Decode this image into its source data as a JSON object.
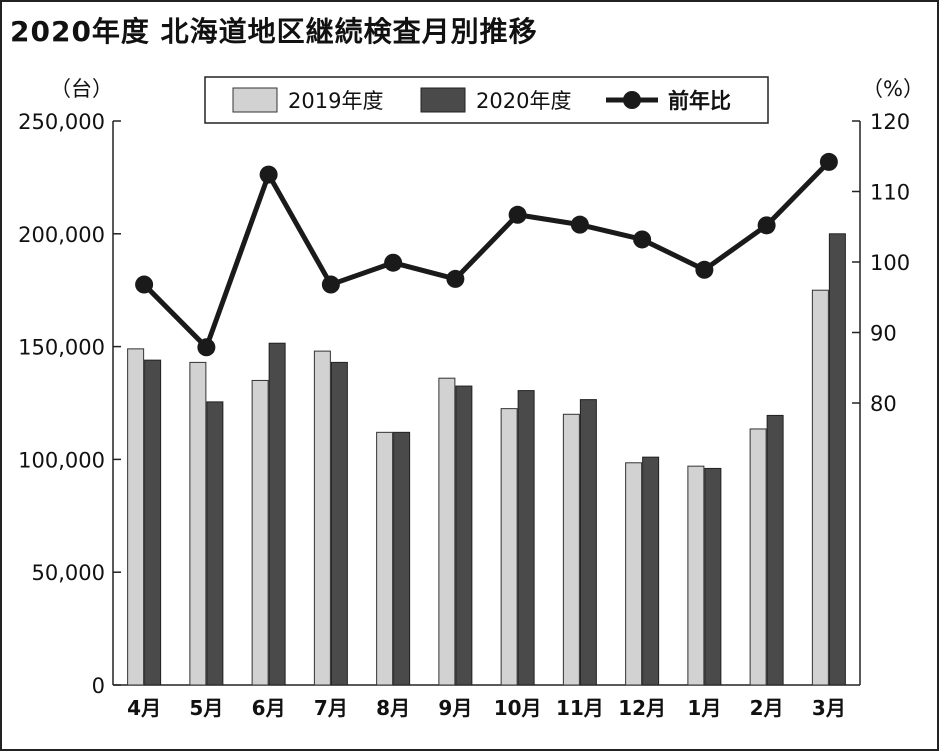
{
  "title": "2020年度  北海道地区継続検査月別推移",
  "colors": {
    "series_2019": "#d2d2d2",
    "series_2020": "#4a4a4a",
    "ratio_line": "#1a1a1a"
  },
  "chart_data": {
    "type": "bar",
    "categories": [
      "4月",
      "5月",
      "6月",
      "7月",
      "8月",
      "9月",
      "10月",
      "11月",
      "12月",
      "1月",
      "2月",
      "3月"
    ],
    "y_left_label": "（台）",
    "y_right_label": "（%）",
    "y_left_range": [
      0,
      250000
    ],
    "y_left_ticks": [
      "0",
      "50,000",
      "100,000",
      "150,000",
      "200,000",
      "250,000"
    ],
    "y_left_tick_values": [
      0,
      50000,
      100000,
      150000,
      200000,
      250000
    ],
    "y_right_range": [
      40,
      120
    ],
    "y_right_ticks": [
      "80",
      "90",
      "100",
      "110",
      "120"
    ],
    "y_right_tick_values": [
      80,
      90,
      100,
      110,
      120
    ],
    "legend_position": "top-center",
    "series": [
      {
        "name": "2019年度",
        "type": "bar",
        "axis": "left",
        "values": [
          149000,
          143000,
          135000,
          148000,
          112000,
          136000,
          122500,
          120000,
          98500,
          97000,
          113500,
          175000
        ]
      },
      {
        "name": "2020年度",
        "type": "bar",
        "axis": "left",
        "values": [
          144000,
          125500,
          151500,
          143000,
          112000,
          132500,
          130500,
          126500,
          101000,
          96000,
          119500,
          200000
        ]
      },
      {
        "name": "前年比",
        "type": "line",
        "axis": "right",
        "values": [
          96.8,
          87.9,
          112.4,
          96.8,
          99.9,
          97.6,
          106.7,
          105.3,
          103.2,
          98.9,
          105.2,
          114.2
        ]
      }
    ],
    "grid": false
  }
}
